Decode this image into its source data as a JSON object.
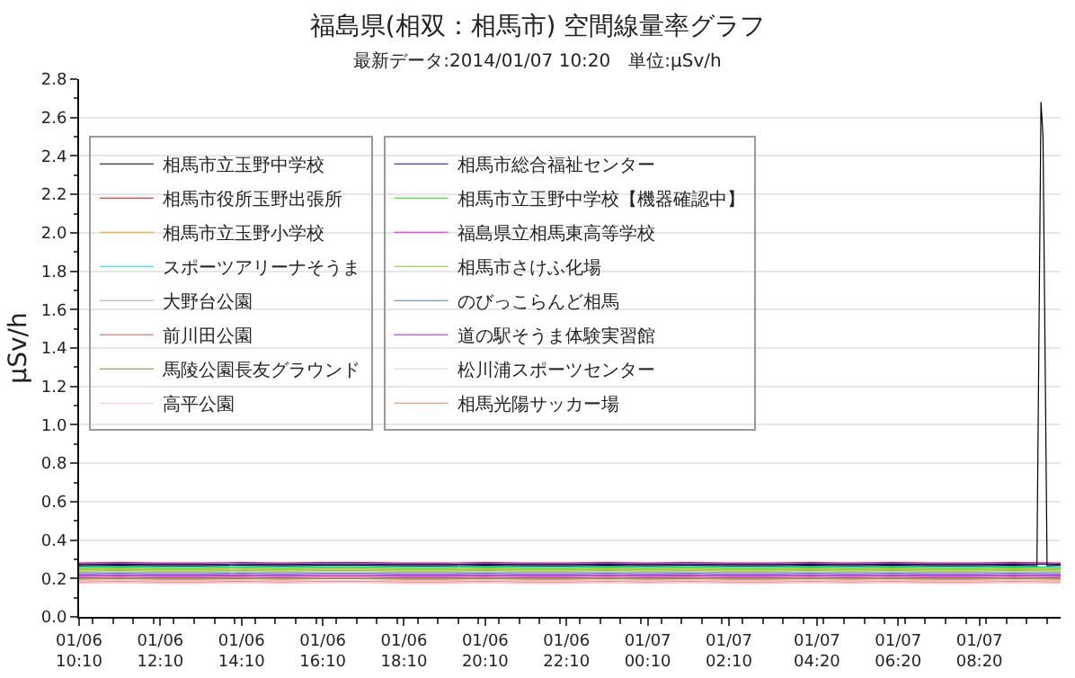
{
  "chart_data": {
    "type": "line",
    "title": "福島県(相双：相馬市) 空間線量率グラフ",
    "subtitle": "最新データ:2014/01/07 10:20　単位:μSv/h",
    "ylabel": "μSv/h",
    "x": [
      "2014-01-06T10:10",
      "2014-01-06T11:10",
      "2014-01-06T12:10",
      "2014-01-06T13:10",
      "2014-01-06T14:10",
      "2014-01-06T15:10",
      "2014-01-06T16:10",
      "2014-01-06T17:10",
      "2014-01-06T18:10",
      "2014-01-06T19:10",
      "2014-01-06T20:10",
      "2014-01-06T21:10",
      "2014-01-06T22:10",
      "2014-01-06T23:10",
      "2014-01-07T00:10",
      "2014-01-07T01:10",
      "2014-01-07T02:10",
      "2014-01-07T03:10",
      "2014-01-07T04:10",
      "2014-01-07T05:10",
      "2014-01-07T06:10",
      "2014-01-07T07:10",
      "2014-01-07T08:10",
      "2014-01-07T09:10",
      "2014-01-07T10:20"
    ],
    "xlim": [
      "2014-01-06T10:10",
      "2014-01-07T10:20"
    ],
    "xticks": [
      {
        "value": "2014-01-06T10:10",
        "label": "01/06\n10:10"
      },
      {
        "value": "2014-01-06T12:10",
        "label": "01/06\n12:10"
      },
      {
        "value": "2014-01-06T14:10",
        "label": "01/06\n14:10"
      },
      {
        "value": "2014-01-06T16:10",
        "label": "01/06\n16:10"
      },
      {
        "value": "2014-01-06T18:10",
        "label": "01/06\n18:10"
      },
      {
        "value": "2014-01-06T20:10",
        "label": "01/06\n20:10"
      },
      {
        "value": "2014-01-06T22:10",
        "label": "01/06\n22:10"
      },
      {
        "value": "2014-01-07T00:10",
        "label": "01/07\n00:10"
      },
      {
        "value": "2014-01-07T02:10",
        "label": "01/07\n02:10"
      },
      {
        "value": "2014-01-07T04:20",
        "label": "01/07\n04:20"
      },
      {
        "value": "2014-01-07T06:20",
        "label": "01/07\n06:20"
      },
      {
        "value": "2014-01-07T08:20",
        "label": "01/07\n08:20"
      }
    ],
    "ylim": [
      0,
      2.8
    ],
    "yticks": [
      {
        "value": 0,
        "label": "0.0"
      },
      {
        "value": 0.2,
        "label": "0.2"
      },
      {
        "value": 0.4,
        "label": "0.4"
      },
      {
        "value": 0.6,
        "label": "0.6"
      },
      {
        "value": 0.8,
        "label": "0.8"
      },
      {
        "value": 1,
        "label": "1.0"
      },
      {
        "value": 1.2,
        "label": "1.2"
      },
      {
        "value": 1.4,
        "label": "1.4"
      },
      {
        "value": 1.6,
        "label": "1.6"
      },
      {
        "value": 1.8,
        "label": "1.8"
      },
      {
        "value": 2,
        "label": "2.0"
      },
      {
        "value": 2.2,
        "label": "2.2"
      },
      {
        "value": 2.4,
        "label": "2.4"
      },
      {
        "value": 2.6,
        "label": "2.6"
      },
      {
        "value": 2.8,
        "label": "2.8"
      }
    ],
    "grid": "y",
    "legend": "left",
    "marker": "none",
    "line_style": "solid",
    "series": [
      {
        "name": "相馬市立玉野中学校",
        "color": "#000000",
        "x": [
          "2014-01-06T10:10",
          "2014-01-06T11:10",
          "2014-01-06T12:10",
          "2014-01-06T13:10",
          "2014-01-06T14:10",
          "2014-01-06T15:10",
          "2014-01-06T16:10",
          "2014-01-06T17:10",
          "2014-01-06T18:10",
          "2014-01-06T19:10",
          "2014-01-06T20:10",
          "2014-01-06T21:10",
          "2014-01-06T22:10",
          "2014-01-06T23:10",
          "2014-01-07T00:10",
          "2014-01-07T01:10",
          "2014-01-07T02:10",
          "2014-01-07T03:10",
          "2014-01-07T04:10",
          "2014-01-07T05:10",
          "2014-01-07T06:10",
          "2014-01-07T07:10",
          "2014-01-07T08:10",
          "2014-01-07T09:10",
          "2014-01-07T09:45",
          "2014-01-07T09:51",
          "2014-01-07T09:54",
          "2014-01-07T10:00",
          "2014-01-07T10:20"
        ],
        "values": [
          0.266,
          0.269,
          0.266,
          0.266,
          0.269,
          0.266,
          0.269,
          0.269,
          0.266,
          0.266,
          0.269,
          0.266,
          0.266,
          0.269,
          0.266,
          0.269,
          0.266,
          0.266,
          0.269,
          0.266,
          0.269,
          0.266,
          0.266,
          0.269,
          0.266,
          2.68,
          2.5,
          0.266,
          0.269
        ]
      },
      {
        "name": "相馬市役所玉野出張所",
        "color": "#ff0000",
        "values": [
          0.28,
          0.283,
          0.28,
          0.28,
          0.283,
          0.28,
          0.283,
          0.283,
          0.28,
          0.28,
          0.283,
          0.28,
          0.28,
          0.283,
          0.28,
          0.283,
          0.28,
          0.28,
          0.283,
          0.28,
          0.283,
          0.28,
          0.28,
          0.283,
          0.28
        ]
      },
      {
        "name": "相馬市立玉野小学校",
        "color": "#ffa500",
        "values": [
          0.245,
          0.248,
          0.245,
          0.245,
          0.248,
          0.245,
          0.248,
          0.248,
          0.245,
          0.245,
          0.248,
          0.245,
          0.245,
          0.248,
          0.245,
          0.248,
          0.245,
          0.245,
          0.248,
          0.245,
          0.248,
          0.245,
          0.245,
          0.248,
          0.245
        ]
      },
      {
        "name": "スポーツアリーナそうま",
        "color": "#00e5ee",
        "values": [
          0.259,
          0.262,
          0.259,
          0.259,
          0.262,
          0.259,
          0.262,
          0.262,
          0.259,
          0.259,
          0.262,
          0.259,
          0.259,
          0.262,
          0.259,
          0.262,
          0.259,
          0.259,
          0.262,
          0.259,
          0.262,
          0.259,
          0.259,
          0.262,
          0.259
        ]
      },
      {
        "name": "大野台公園",
        "color": "#a9a9a9",
        "values": [
          0.231,
          0.234,
          0.231,
          0.231,
          0.234,
          0.231,
          0.234,
          0.234,
          0.231,
          0.231,
          0.234,
          0.231,
          0.231,
          0.234,
          0.231,
          0.234,
          0.231,
          0.231,
          0.234,
          0.231,
          0.234,
          0.231,
          0.231,
          0.234,
          0.231
        ]
      },
      {
        "name": "前川田公園",
        "color": "#cd5c4a",
        "values": [
          0.196,
          0.199,
          0.196,
          0.196,
          0.199,
          0.196,
          0.199,
          0.199,
          0.196,
          0.196,
          0.199,
          0.196,
          0.196,
          0.199,
          0.196,
          0.199,
          0.196,
          0.196,
          0.199,
          0.196,
          0.199,
          0.196,
          0.196,
          0.199,
          0.196
        ]
      },
      {
        "name": "馬陵公園長友グラウンド",
        "color": "#6b8e23",
        "values": [
          0.203,
          0.206,
          0.203,
          0.203,
          0.206,
          0.203,
          0.206,
          0.206,
          0.203,
          0.203,
          0.206,
          0.203,
          0.203,
          0.206,
          0.203,
          0.206,
          0.203,
          0.203,
          0.206,
          0.203,
          0.206,
          0.203,
          0.203,
          0.206,
          0.203
        ]
      },
      {
        "name": "高平公園",
        "color": "#ffb6f0",
        "values": [
          0.175,
          0.178,
          0.175,
          0.175,
          0.178,
          0.175,
          0.178,
          0.178,
          0.175,
          0.175,
          0.178,
          0.175,
          0.175,
          0.178,
          0.175,
          0.178,
          0.175,
          0.175,
          0.178,
          0.175,
          0.178,
          0.175,
          0.175,
          0.178,
          0.175
        ]
      },
      {
        "name": "相馬市総合福祉センター",
        "color": "#0000ff",
        "values": [
          0.273,
          0.276,
          0.273,
          0.273,
          0.276,
          0.273,
          0.276,
          0.276,
          0.273,
          0.273,
          0.276,
          0.273,
          0.273,
          0.276,
          0.273,
          0.276,
          0.273,
          0.273,
          0.276,
          0.273,
          0.276,
          0.273,
          0.273,
          0.276,
          0.273
        ]
      },
      {
        "name": "相馬市立玉野中学校【機器確認中】",
        "color": "#00ee00",
        "values": [
          0.252,
          0.255,
          0.252,
          0.252,
          0.255,
          0.252,
          0.255,
          0.255,
          0.252,
          0.252,
          0.255,
          0.252,
          0.252,
          0.255,
          0.252,
          0.255,
          0.252,
          0.252,
          0.255,
          0.252,
          0.255,
          0.252,
          0.252,
          0.255,
          0.252
        ]
      },
      {
        "name": "福島県立相馬東高等学校",
        "color": "#ff00ff",
        "values": [
          0.21,
          0.213,
          0.21,
          0.21,
          0.213,
          0.21,
          0.213,
          0.213,
          0.21,
          0.21,
          0.213,
          0.21,
          0.21,
          0.213,
          0.21,
          0.213,
          0.21,
          0.21,
          0.213,
          0.21,
          0.213,
          0.21,
          0.21,
          0.213,
          0.21
        ]
      },
      {
        "name": "相馬市さけふ化場",
        "color": "#7ccd22",
        "values": [
          0.238,
          0.241,
          0.238,
          0.238,
          0.241,
          0.238,
          0.241,
          0.241,
          0.238,
          0.238,
          0.241,
          0.238,
          0.238,
          0.241,
          0.238,
          0.241,
          0.238,
          0.238,
          0.241,
          0.238,
          0.241,
          0.238,
          0.238,
          0.241,
          0.238
        ]
      },
      {
        "name": "のびっこらんど相馬",
        "color": "#4682b4",
        "values": [
          0.224,
          0.227,
          0.224,
          0.224,
          0.227,
          0.224,
          0.227,
          0.227,
          0.224,
          0.224,
          0.227,
          0.224,
          0.224,
          0.227,
          0.224,
          0.227,
          0.224,
          0.224,
          0.227,
          0.224,
          0.227,
          0.224,
          0.224,
          0.227,
          0.224
        ]
      },
      {
        "name": "道の駅そうま体験実習館",
        "color": "#a020f0",
        "values": [
          0.217,
          0.22,
          0.217,
          0.217,
          0.22,
          0.217,
          0.22,
          0.22,
          0.217,
          0.217,
          0.22,
          0.217,
          0.217,
          0.22,
          0.217,
          0.22,
          0.217,
          0.217,
          0.22,
          0.217,
          0.22,
          0.217,
          0.217,
          0.22,
          0.217
        ]
      },
      {
        "name": "松川浦スポーツセンター",
        "color": "#d3d3d3",
        "values": [
          0.189,
          0.192,
          0.189,
          0.189,
          0.192,
          0.189,
          0.192,
          0.192,
          0.189,
          0.189,
          0.192,
          0.189,
          0.189,
          0.192,
          0.189,
          0.192,
          0.189,
          0.189,
          0.192,
          0.189,
          0.192,
          0.189,
          0.189,
          0.192,
          0.189
        ]
      },
      {
        "name": "相馬光陽サッカー場",
        "color": "#ff7f50",
        "values": [
          0.182,
          0.185,
          0.182,
          0.182,
          0.185,
          0.182,
          0.185,
          0.185,
          0.182,
          0.182,
          0.185,
          0.182,
          0.182,
          0.185,
          0.182,
          0.185,
          0.182,
          0.182,
          0.185,
          0.182,
          0.185,
          0.182,
          0.182,
          0.185,
          0.182
        ]
      }
    ]
  }
}
